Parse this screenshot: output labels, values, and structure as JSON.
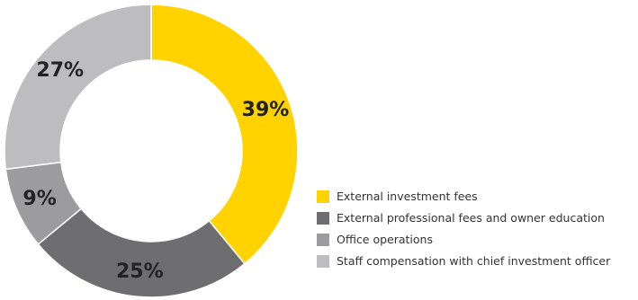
{
  "chart_data": {
    "type": "pie",
    "donut": true,
    "categories": [
      "External investment fees",
      "External professional fees and owner education",
      "Office operations",
      "Staff compensation with chief investment officer"
    ],
    "values": [
      39,
      25,
      9,
      27
    ],
    "value_labels": [
      "39%",
      "25%",
      "9%",
      "27%"
    ],
    "colors": [
      "#FFD200",
      "#6E6E70",
      "#9C9C9E",
      "#BDBDBF"
    ],
    "start_angle_deg": 0,
    "direction": "clockwise",
    "legend_placement": "bottom-right"
  }
}
